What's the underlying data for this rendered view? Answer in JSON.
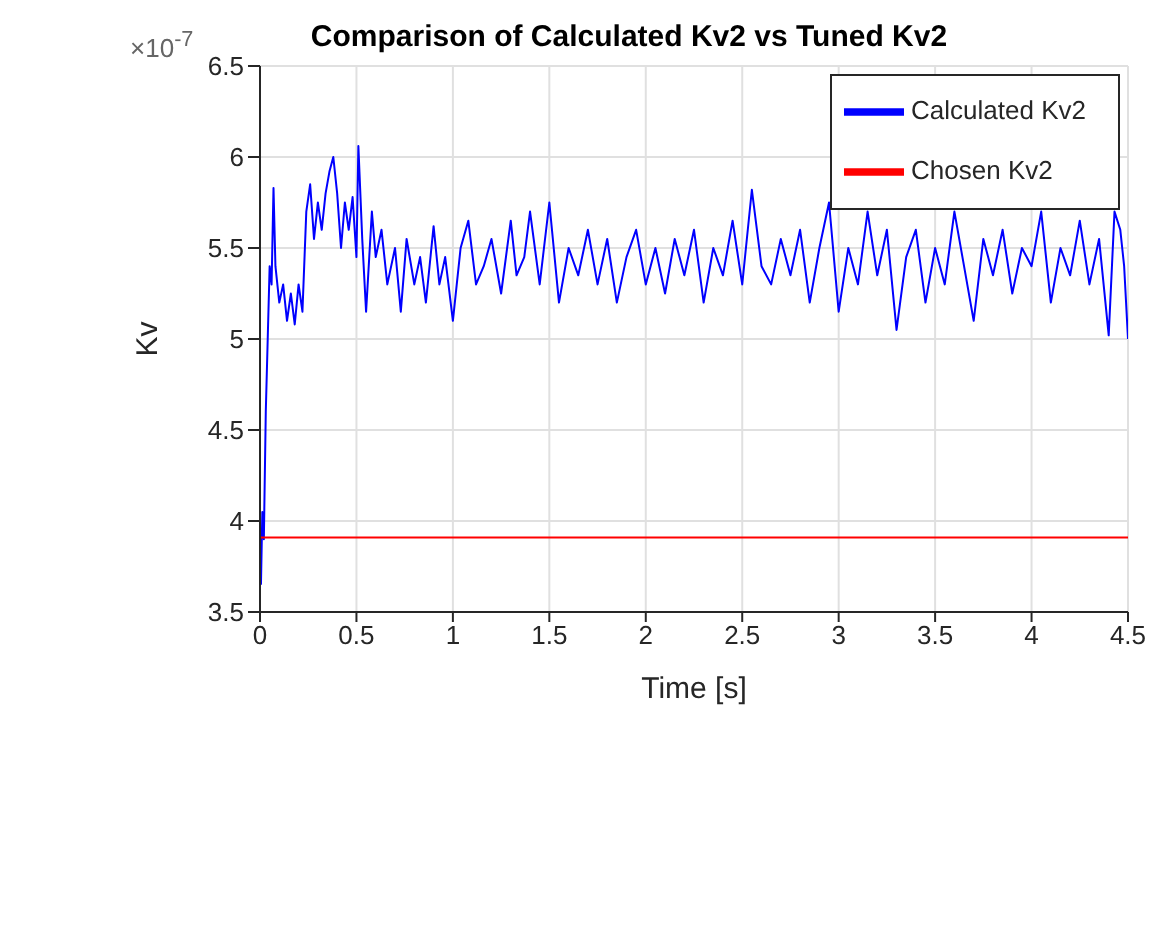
{
  "chart_data": {
    "type": "line",
    "title": "Comparison of Calculated Kv2 vs Tuned Kv2",
    "xlabel": "Time [s]",
    "ylabel": "Kv",
    "annotations": [
      "×10$^{-7}$"
    ],
    "xlim": [
      0,
      4.5
    ],
    "xticks": [
      0,
      0.5,
      1,
      1.5,
      2,
      2.5,
      3,
      3.5,
      4,
      4.5
    ],
    "ylim": [
      3.5,
      6.5
    ],
    "yticks": [
      3.5,
      4,
      4.5,
      5,
      5.5,
      6,
      6.5
    ],
    "grid": true,
    "legend": "top right",
    "line_style": "solid",
    "marker": "none",
    "series": [
      {
        "name": "Calculated Kv2",
        "color": "#0000ff",
        "x": [
          0.005,
          0.012,
          0.02,
          0.03,
          0.04,
          0.05,
          0.06,
          0.07,
          0.08,
          0.1,
          0.12,
          0.14,
          0.16,
          0.18,
          0.2,
          0.22,
          0.24,
          0.26,
          0.28,
          0.3,
          0.32,
          0.34,
          0.36,
          0.38,
          0.4,
          0.42,
          0.44,
          0.46,
          0.48,
          0.5,
          0.51,
          0.53,
          0.55,
          0.58,
          0.6,
          0.63,
          0.66,
          0.7,
          0.73,
          0.76,
          0.8,
          0.83,
          0.86,
          0.9,
          0.93,
          0.96,
          1.0,
          1.04,
          1.08,
          1.12,
          1.16,
          1.2,
          1.25,
          1.3,
          1.33,
          1.37,
          1.4,
          1.45,
          1.5,
          1.55,
          1.6,
          1.65,
          1.7,
          1.75,
          1.8,
          1.85,
          1.9,
          1.95,
          2.0,
          2.05,
          2.1,
          2.15,
          2.2,
          2.25,
          2.3,
          2.35,
          2.4,
          2.45,
          2.5,
          2.55,
          2.6,
          2.65,
          2.7,
          2.75,
          2.8,
          2.85,
          2.9,
          2.95,
          3.0,
          3.05,
          3.1,
          3.15,
          3.2,
          3.25,
          3.3,
          3.35,
          3.4,
          3.45,
          3.5,
          3.55,
          3.6,
          3.65,
          3.7,
          3.75,
          3.8,
          3.85,
          3.9,
          3.95,
          4.0,
          4.05,
          4.1,
          4.15,
          4.2,
          4.25,
          4.3,
          4.35,
          4.4,
          4.43,
          4.46,
          4.48,
          4.5
        ],
        "values": [
          3.65,
          4.05,
          3.9,
          4.6,
          5.0,
          5.4,
          5.3,
          5.83,
          5.4,
          5.2,
          5.3,
          5.1,
          5.25,
          5.08,
          5.3,
          5.15,
          5.7,
          5.85,
          5.55,
          5.75,
          5.6,
          5.8,
          5.92,
          6.0,
          5.8,
          5.5,
          5.75,
          5.6,
          5.78,
          5.45,
          6.06,
          5.55,
          5.15,
          5.7,
          5.45,
          5.6,
          5.3,
          5.5,
          5.15,
          5.55,
          5.3,
          5.45,
          5.2,
          5.62,
          5.3,
          5.45,
          5.1,
          5.5,
          5.65,
          5.3,
          5.4,
          5.55,
          5.25,
          5.65,
          5.35,
          5.45,
          5.7,
          5.3,
          5.75,
          5.2,
          5.5,
          5.35,
          5.6,
          5.3,
          5.55,
          5.2,
          5.45,
          5.6,
          5.3,
          5.5,
          5.25,
          5.55,
          5.35,
          5.6,
          5.2,
          5.5,
          5.35,
          5.65,
          5.3,
          5.82,
          5.4,
          5.3,
          5.55,
          5.35,
          5.6,
          5.2,
          5.5,
          5.75,
          5.15,
          5.5,
          5.3,
          5.7,
          5.35,
          5.6,
          5.05,
          5.45,
          5.6,
          5.2,
          5.5,
          5.3,
          5.7,
          5.4,
          5.1,
          5.55,
          5.35,
          5.6,
          5.25,
          5.5,
          5.4,
          5.7,
          5.2,
          5.5,
          5.35,
          5.65,
          5.3,
          5.55,
          5.02,
          5.7,
          5.6,
          5.4,
          5.0
        ]
      },
      {
        "name": "Chosen Kv2",
        "color": "#ff0000",
        "x": [
          0,
          4.5
        ],
        "values": [
          3.91,
          3.91
        ]
      }
    ]
  }
}
